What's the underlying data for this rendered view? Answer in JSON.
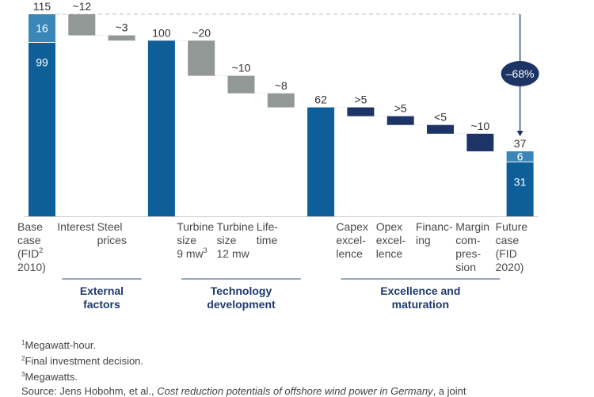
{
  "chart_data": {
    "type": "waterfall",
    "title": "",
    "xlabel": "",
    "ylabel": "",
    "ylim": [
      0,
      115
    ],
    "grid": false,
    "colors": {
      "total": "#0d5e99",
      "total_top": "#3a86b8",
      "external": "#929896",
      "technology": "#929896",
      "excellence": "#1c3466",
      "arrow": "#1c3466",
      "axis": "#cccccc",
      "dashed": "#c8c8c8"
    },
    "bars": [
      {
        "id": "base-case",
        "kind": "total",
        "label_lines": [
          "Base",
          "case",
          "(FID²",
          "2010)"
        ],
        "value": 115,
        "value_label": "115",
        "segments": [
          {
            "value": 99,
            "label": "99"
          },
          {
            "value": 16,
            "label": "16"
          }
        ]
      },
      {
        "id": "interest",
        "kind": "delta",
        "group": "external",
        "label_lines": [
          "Interest"
        ],
        "value": -12,
        "value_label": "~12"
      },
      {
        "id": "steel-prices",
        "kind": "delta",
        "group": "external",
        "label_lines": [
          "Steel",
          "prices"
        ],
        "value": -3,
        "value_label": "~3"
      },
      {
        "id": "subtotal-100",
        "kind": "total",
        "label_lines": [],
        "value": 100,
        "value_label": "100",
        "segments": [
          {
            "value": 100,
            "label": ""
          }
        ]
      },
      {
        "id": "turbine-9mw",
        "kind": "delta",
        "group": "technology",
        "label_lines": [
          "Turbine",
          "size",
          "9 mw³"
        ],
        "value": -20,
        "value_label": "~20"
      },
      {
        "id": "turbine-12mw",
        "kind": "delta",
        "group": "technology",
        "label_lines": [
          "Turbine",
          "size",
          "12 mw"
        ],
        "value": -10,
        "value_label": "~10"
      },
      {
        "id": "lifetime",
        "kind": "delta",
        "group": "technology",
        "label_lines": [
          "Life-",
          "time"
        ],
        "value": -8,
        "value_label": "~8"
      },
      {
        "id": "subtotal-62",
        "kind": "total",
        "label_lines": [],
        "value": 62,
        "value_label": "62",
        "segments": [
          {
            "value": 62,
            "label": ""
          }
        ]
      },
      {
        "id": "capex-excellence",
        "kind": "delta",
        "group": "excellence",
        "label_lines": [
          "Capex",
          "excel-",
          "lence"
        ],
        "value": -5,
        "value_label": ">5"
      },
      {
        "id": "opex-excellence",
        "kind": "delta",
        "group": "excellence",
        "label_lines": [
          "Opex",
          "excel-",
          "lence"
        ],
        "value": -5,
        "value_label": ">5"
      },
      {
        "id": "financing",
        "kind": "delta",
        "group": "excellence",
        "label_lines": [
          "Financ-",
          "ing"
        ],
        "value": -5,
        "value_label": "<5"
      },
      {
        "id": "margin-compression",
        "kind": "delta",
        "group": "excellence",
        "label_lines": [
          "Margin",
          "com-",
          "pres-",
          "sion"
        ],
        "value": -10,
        "value_label": "~10"
      },
      {
        "id": "future-case",
        "kind": "total",
        "label_lines": [
          "Future",
          "case",
          "(FID",
          "2020)"
        ],
        "value": 37,
        "value_label": "37",
        "segments": [
          {
            "value": 31,
            "label": "31"
          },
          {
            "value": 6,
            "label": "6"
          }
        ]
      }
    ],
    "groups": [
      {
        "id": "external",
        "label_lines": [
          "External",
          "factors"
        ],
        "from": 1,
        "to": 2
      },
      {
        "id": "technology",
        "label_lines": [
          "Technology",
          "development"
        ],
        "from": 4,
        "to": 6
      },
      {
        "id": "excellence",
        "label_lines": [
          "Excellence and",
          "maturation"
        ],
        "from": 8,
        "to": 11
      }
    ],
    "annotation": {
      "text": "–68%",
      "from_value": 115,
      "to_value": 37
    }
  },
  "footnotes": [
    {
      "mark": "1",
      "text": "Megawatt-hour."
    },
    {
      "mark": "2",
      "text": "Final investment decision."
    },
    {
      "mark": "3",
      "text": "Megawatts."
    }
  ],
  "source": {
    "prefix": "Source: Jens Hobohm, et al., ",
    "title": "Cost reduction potentials of offshore wind power in Germany",
    "suffix": ", a joint"
  }
}
